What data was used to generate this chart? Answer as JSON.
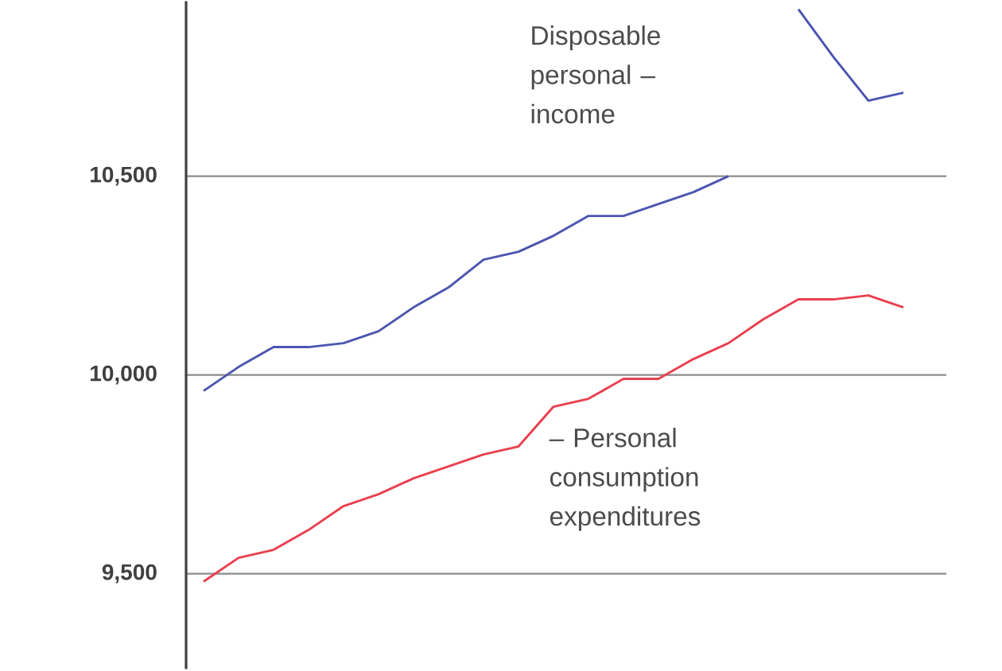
{
  "chart_data": {
    "type": "line",
    "categories": [
      null,
      null,
      null,
      null,
      null,
      null,
      null,
      null,
      null,
      null,
      null,
      null,
      null,
      null,
      null,
      null,
      null,
      null,
      null,
      null,
      null
    ],
    "series": [
      {
        "name": "Disposable personal – income",
        "color": "#4b55b0",
        "values": [
          9960,
          10020,
          10070,
          10070,
          10080,
          10110,
          10170,
          10220,
          10290,
          10310,
          10350,
          10400,
          10400,
          10430,
          10460,
          10500,
          null,
          10920,
          10800,
          10690,
          10710
        ]
      },
      {
        "name": "– Personal consumption expenditures",
        "color": "#e8404f",
        "values": [
          9480,
          9540,
          9560,
          9610,
          9670,
          9700,
          9740,
          9770,
          9800,
          9820,
          9920,
          9940,
          9990,
          9990,
          10040,
          10080,
          10140,
          10190,
          10190,
          10200,
          10170
        ]
      }
    ],
    "ylim": [
      9260,
      10940
    ],
    "yticks": [
      {
        "value": 9500,
        "label": "9,500"
      },
      {
        "value": 10000,
        "label": "10,000"
      },
      {
        "value": 10500,
        "label": "10,500"
      }
    ],
    "grid": "y",
    "marker": "none",
    "line_style": "solid"
  }
}
